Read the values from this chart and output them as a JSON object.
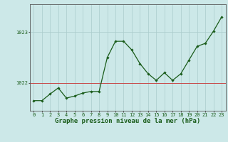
{
  "x": [
    0,
    1,
    2,
    3,
    4,
    5,
    6,
    7,
    8,
    9,
    10,
    11,
    12,
    13,
    14,
    15,
    16,
    17,
    18,
    19,
    20,
    21,
    22,
    23
  ],
  "y": [
    1021.65,
    1021.65,
    1021.78,
    1021.9,
    1021.7,
    1021.74,
    1021.8,
    1021.83,
    1021.83,
    1022.5,
    1022.82,
    1022.82,
    1022.65,
    1022.38,
    1022.18,
    1022.05,
    1022.2,
    1022.05,
    1022.18,
    1022.45,
    1022.72,
    1022.78,
    1023.02,
    1023.3
  ],
  "line_color": "#1a5c1a",
  "marker": "D",
  "marker_size": 1.8,
  "line_width": 0.9,
  "bg_color": "#cce8e8",
  "grid_color": "#aacccc",
  "xlabel": "Graphe pression niveau de la mer (hPa)",
  "xlabel_fontsize": 6.5,
  "ytick_labels": [
    "1022",
    "1023"
  ],
  "ytick_values": [
    1022.0,
    1023.0
  ],
  "ylim": [
    1021.45,
    1023.55
  ],
  "xlim": [
    -0.5,
    23.5
  ],
  "xtick_labels": [
    "0",
    "1",
    "2",
    "3",
    "4",
    "5",
    "6",
    "7",
    "8",
    "9",
    "10",
    "11",
    "12",
    "13",
    "14",
    "15",
    "16",
    "17",
    "18",
    "19",
    "20",
    "21",
    "22",
    "23"
  ],
  "tick_fontsize": 5.0,
  "hline_color": "#cc3333",
  "hline_y": 1022.0,
  "spine_color": "#555555"
}
